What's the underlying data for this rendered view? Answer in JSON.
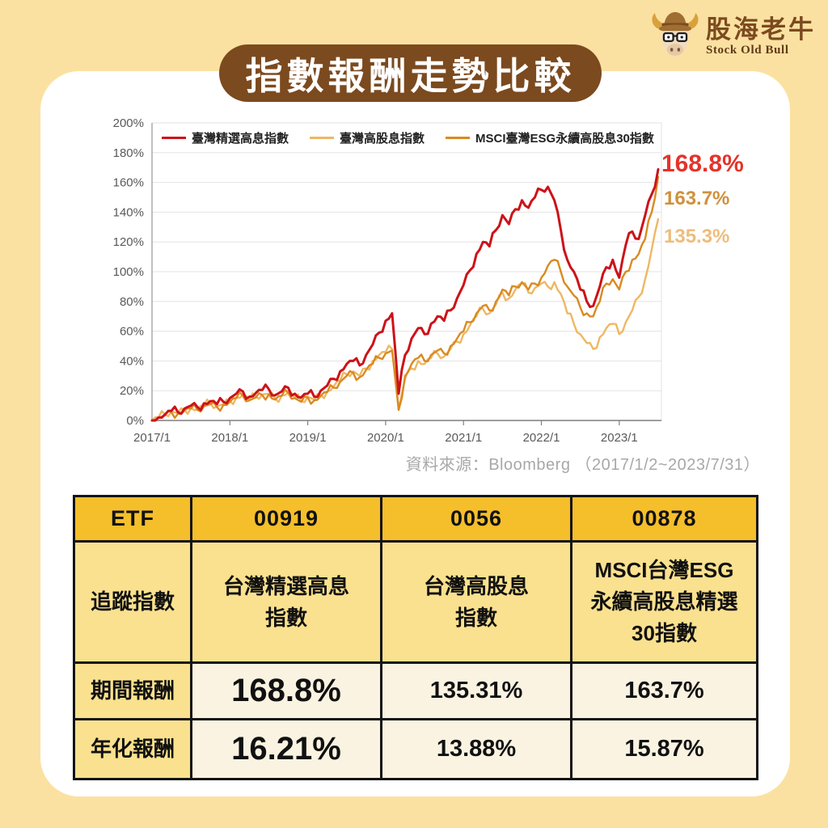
{
  "header": {
    "title": "指數報酬走勢比較"
  },
  "logo": {
    "name_zh": "股海老牛",
    "name_en": "Stock Old Bull",
    "brand_color": "#7B4A1F"
  },
  "palette": {
    "background": "#FBE1A1",
    "card": "#FFFFFF",
    "banner_brown": "#7B4A1F",
    "table_gold": "#F5BE2B",
    "table_light_yellow": "#FAE18F",
    "table_cream": "#FAF3E1",
    "table_accent": "#C8491B"
  },
  "chart_data": {
    "type": "line",
    "title": "",
    "xlabel": "",
    "ylabel": "",
    "ylim": [
      0,
      200
    ],
    "y_tick_step": 20,
    "y_tick_suffix": "%",
    "grid": true,
    "legend_position": "top-inside",
    "x_tick_labels": [
      "2017/1",
      "2018/1",
      "2019/1",
      "2020/1",
      "2021/1",
      "2022/1",
      "2023/1"
    ],
    "x_months_span": 79,
    "x_range_note": "monthly values 2017/1 through 2023/7",
    "series": [
      {
        "name": "臺灣精選高息指數",
        "color": "#CC1219",
        "final_return": "168.8%",
        "values": [
          0,
          2,
          4,
          6.5,
          5.5,
          8,
          10,
          9,
          11.5,
          13,
          11,
          12.5,
          15,
          18,
          19.5,
          16,
          18.5,
          20.5,
          21,
          17,
          19.5,
          22,
          18,
          15.5,
          18,
          16,
          20,
          23.5,
          28,
          33,
          38,
          40,
          37,
          44,
          51,
          59,
          67,
          72,
          18,
          44,
          55,
          62,
          58,
          65,
          70,
          67,
          74,
          82,
          91,
          101,
          112,
          120,
          117,
          128,
          138,
          132,
          142,
          148,
          143,
          150,
          155,
          157,
          148,
          128,
          108,
          100,
          88,
          80,
          77,
          90,
          103,
          108,
          96,
          118,
          127,
          122,
          138,
          152,
          168.8
        ]
      },
      {
        "name": "臺灣高股息指數",
        "color": "#EFB763",
        "final_return": "135.3%",
        "values": [
          0,
          2,
          4,
          6,
          5,
          7,
          8.5,
          7.5,
          10,
          11.5,
          9.5,
          11,
          13,
          15.5,
          17,
          14,
          16,
          17.5,
          18,
          14.5,
          17,
          19,
          15.5,
          13,
          16,
          14,
          17,
          19.5,
          23,
          27,
          31,
          33,
          30,
          35,
          40,
          44,
          46,
          48,
          8,
          28,
          35,
          40,
          38,
          42,
          45,
          43,
          48,
          53,
          58,
          64,
          70,
          75,
          72,
          78,
          86,
          82,
          88,
          92,
          86,
          89,
          92,
          90,
          93,
          85,
          72,
          65,
          58,
          52,
          48,
          56,
          62,
          65,
          58,
          66,
          74,
          83,
          95,
          115,
          135.3
        ]
      },
      {
        "name": "MSCI臺灣ESG永續高股息30指數",
        "color": "#D98A20",
        "final_return": "163.7%",
        "values": [
          0,
          1.5,
          3.5,
          5.5,
          4.5,
          6.5,
          8,
          7,
          9.5,
          11,
          9,
          10.5,
          12.5,
          15,
          16.5,
          13.5,
          15.5,
          17,
          17.5,
          14,
          16.5,
          18.5,
          15,
          12.5,
          15.5,
          13.5,
          16.5,
          19,
          22,
          26,
          30,
          32,
          29,
          34,
          38,
          42,
          45,
          47,
          7,
          30,
          38,
          42,
          40,
          44,
          47,
          45,
          50,
          55,
          60,
          66,
          72,
          77,
          74,
          80,
          88,
          84,
          90,
          93,
          88,
          92,
          96,
          104,
          108,
          100,
          90,
          84,
          76,
          72,
          70,
          80,
          92,
          95,
          88,
          100,
          108,
          112,
          122,
          140,
          163.7
        ]
      }
    ],
    "end_labels": [
      {
        "text": "168.8%",
        "color": "#E5332A"
      },
      {
        "text": "163.7%",
        "color": "#D0913E"
      },
      {
        "text": "135.3%",
        "color": "#EDBD7D"
      }
    ],
    "source": "資料來源：Bloomberg （2017/1/2~2023/7/31）"
  },
  "table": {
    "rows": [
      {
        "cells": [
          "ETF",
          "00919",
          "0056",
          "00878"
        ]
      },
      {
        "cells": [
          "追蹤指數",
          "台灣精選高息\n指數",
          "台灣高股息\n指數",
          "MSCI台灣ESG\n永續高股息精選\n30指數"
        ]
      },
      {
        "cells": [
          "期間報酬",
          "168.8%",
          "135.31%",
          "163.7%"
        ]
      },
      {
        "cells": [
          "年化報酬",
          "16.21%",
          "13.88%",
          "15.87%"
        ]
      }
    ]
  }
}
